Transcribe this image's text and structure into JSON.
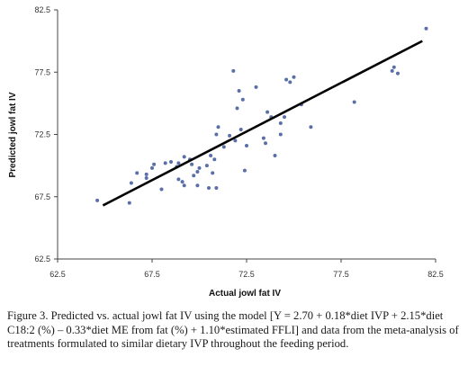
{
  "caption": "Figure 3. Predicted vs. actual jowl fat IV using the model [Y = 2.70 + 0.18*diet IVP + 2.15*diet C18:2 (%) – 0.33*diet ME from fat (%) + 1.10*estimated FFLI] and data from the meta-analysis of treatments formulated to similar dietary IVP throughout the feeding period.",
  "chart_data": {
    "type": "scatter",
    "title": "",
    "xlabel": "Actual jowl fat IV",
    "ylabel": "Predicted jowl fat IV",
    "xlim": [
      62.5,
      82.5
    ],
    "ylim": [
      62.5,
      82.5
    ],
    "xticks": [
      "62.5",
      "67.5",
      "72.5",
      "77.5",
      "82.5"
    ],
    "yticks": [
      "62.5",
      "67.5",
      "72.5",
      "77.5",
      "82.5"
    ],
    "grid": false,
    "legend": "none",
    "point_color": "#5a6fa8",
    "line_color": "#000000",
    "points": [
      [
        64.6,
        67.2
      ],
      [
        66.3,
        67.0
      ],
      [
        66.4,
        68.6
      ],
      [
        66.7,
        69.4
      ],
      [
        67.2,
        69.0
      ],
      [
        67.2,
        69.3
      ],
      [
        67.5,
        69.8
      ],
      [
        67.6,
        70.1
      ],
      [
        68.0,
        68.1
      ],
      [
        68.2,
        70.2
      ],
      [
        68.5,
        70.3
      ],
      [
        68.8,
        69.9
      ],
      [
        68.9,
        68.9
      ],
      [
        68.9,
        70.2
      ],
      [
        69.1,
        68.7
      ],
      [
        69.2,
        68.4
      ],
      [
        69.2,
        70.7
      ],
      [
        69.5,
        70.5
      ],
      [
        69.6,
        70.1
      ],
      [
        69.7,
        69.2
      ],
      [
        69.9,
        68.4
      ],
      [
        69.9,
        69.5
      ],
      [
        70.0,
        69.8
      ],
      [
        70.4,
        70.0
      ],
      [
        70.5,
        68.2
      ],
      [
        70.6,
        70.8
      ],
      [
        70.7,
        69.4
      ],
      [
        70.8,
        70.5
      ],
      [
        70.9,
        68.2
      ],
      [
        70.9,
        72.5
      ],
      [
        71.0,
        73.1
      ],
      [
        71.3,
        71.5
      ],
      [
        71.6,
        72.4
      ],
      [
        71.8,
        77.6
      ],
      [
        71.9,
        72.0
      ],
      [
        72.0,
        74.6
      ],
      [
        72.1,
        76.0
      ],
      [
        72.2,
        72.9
      ],
      [
        72.3,
        75.3
      ],
      [
        72.4,
        69.6
      ],
      [
        72.5,
        71.6
      ],
      [
        73.0,
        76.3
      ],
      [
        73.4,
        72.2
      ],
      [
        73.5,
        71.8
      ],
      [
        73.6,
        74.3
      ],
      [
        73.8,
        73.9
      ],
      [
        74.0,
        70.8
      ],
      [
        74.3,
        73.4
      ],
      [
        74.3,
        72.5
      ],
      [
        74.5,
        73.9
      ],
      [
        74.6,
        76.9
      ],
      [
        74.8,
        76.7
      ],
      [
        75.0,
        77.1
      ],
      [
        75.4,
        74.9
      ],
      [
        75.9,
        73.1
      ],
      [
        78.2,
        75.1
      ],
      [
        80.2,
        77.6
      ],
      [
        80.3,
        77.9
      ],
      [
        80.5,
        77.4
      ],
      [
        82.0,
        81.0
      ]
    ],
    "regression_line": {
      "x": [
        64.9,
        81.8
      ],
      "y": [
        66.8,
        80.0
      ]
    }
  }
}
